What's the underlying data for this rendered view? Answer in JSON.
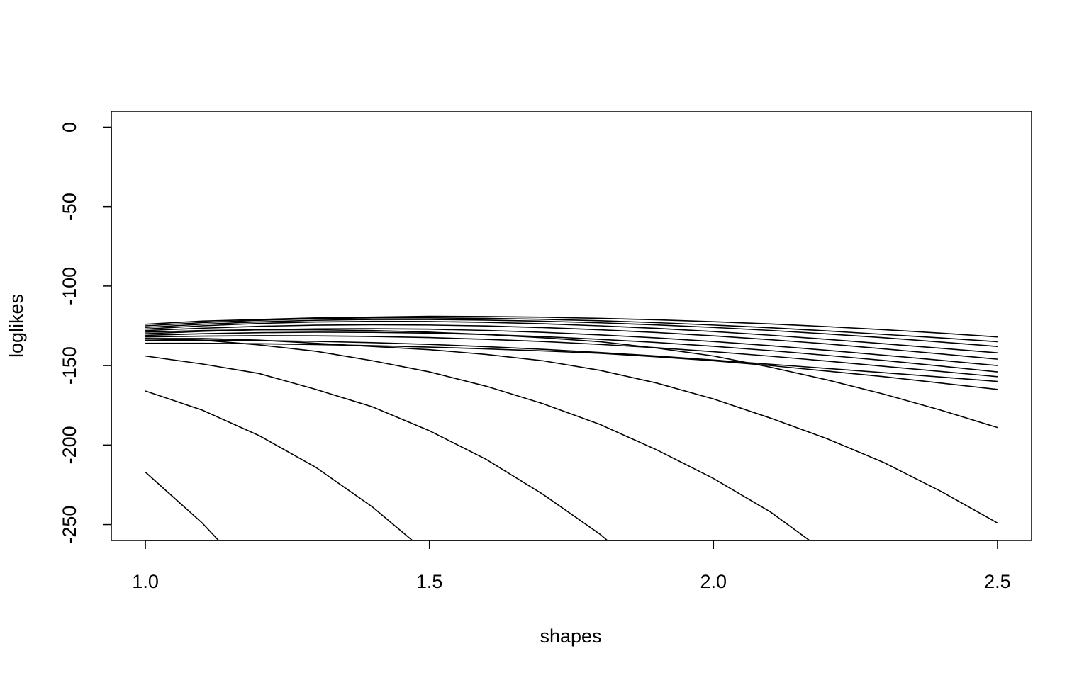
{
  "chart_data": {
    "type": "line",
    "x_label": "shapes",
    "y_label": "loglikes",
    "color": "#000000",
    "x": [
      1.0,
      1.1,
      1.2,
      1.3,
      1.4,
      1.5,
      1.6,
      1.7,
      1.8,
      1.9,
      2.0,
      2.1,
      2.2,
      2.3,
      2.4,
      2.5
    ],
    "xlim": [
      0.94,
      2.56
    ],
    "ylim": [
      -260,
      10
    ],
    "xticks": [
      {
        "value": 1.0,
        "label": "1.0"
      },
      {
        "value": 1.5,
        "label": "1.5"
      },
      {
        "value": 2.0,
        "label": "2.0"
      },
      {
        "value": 2.5,
        "label": "2.5"
      }
    ],
    "yticks": [
      -250,
      -200,
      -150,
      -100,
      -50,
      0
    ],
    "series": [
      {
        "values": [
          -124,
          -122,
          -121,
          -120,
          -119.5,
          -119,
          -119.2,
          -119.6,
          -120.3,
          -121.2,
          -122.4,
          -123.8,
          -125.5,
          -127.4,
          -129.6,
          -132
        ]
      },
      {
        "values": [
          -125,
          -123,
          -121.5,
          -120.5,
          -120,
          -120,
          -120.3,
          -120.9,
          -121.8,
          -123,
          -124.5,
          -126.2,
          -128.2,
          -130.4,
          -132.6,
          -135
        ]
      },
      {
        "values": [
          -126,
          -124,
          -122.5,
          -121.5,
          -121,
          -121,
          -121.4,
          -122.1,
          -123.1,
          -124.4,
          -126,
          -127.9,
          -130.1,
          -132.5,
          -135.2,
          -138
        ]
      },
      {
        "values": [
          -127,
          -125,
          -123.5,
          -122.6,
          -122.2,
          -122.3,
          -122.8,
          -123.7,
          -125,
          -126.6,
          -128.6,
          -130.9,
          -133.5,
          -136.3,
          -139.1,
          -142
        ]
      },
      {
        "values": [
          -128,
          -126.5,
          -125.3,
          -124.6,
          -124.3,
          -124.5,
          -125.1,
          -126.1,
          -127.5,
          -129.2,
          -131.3,
          -133.7,
          -136.4,
          -139.5,
          -142.7,
          -146
        ]
      },
      {
        "values": [
          -130,
          -128.5,
          -127.5,
          -126.9,
          -126.8,
          -127.1,
          -127.9,
          -129.1,
          -130.7,
          -132.6,
          -134.9,
          -137.5,
          -140.4,
          -143.5,
          -146.7,
          -150
        ]
      },
      {
        "values": [
          -131,
          -130,
          -129.3,
          -129,
          -129.1,
          -129.6,
          -130.5,
          -131.8,
          -133.5,
          -135.5,
          -137.9,
          -140.6,
          -143.6,
          -146.8,
          -150.3,
          -154
        ]
      },
      {
        "values": [
          -132,
          -131.5,
          -131.2,
          -131.3,
          -131.7,
          -132.4,
          -133.5,
          -134.9,
          -136.7,
          -138.8,
          -141.3,
          -144.1,
          -147.2,
          -150.5,
          -153.7,
          -157
        ]
      },
      {
        "values": [
          -134,
          -134,
          -134.3,
          -134.8,
          -135.6,
          -136.7,
          -138.1,
          -139.8,
          -141.8,
          -144,
          -146.5,
          -149.2,
          -151.8,
          -154.5,
          -157.2,
          -160
        ]
      },
      {
        "values": [
          -136,
          -136,
          -136.3,
          -136.8,
          -137.5,
          -138.4,
          -139.5,
          -140.8,
          -142.3,
          -144.5,
          -147,
          -150,
          -153.5,
          -157,
          -161,
          -165
        ]
      },
      {
        "values": [
          -129,
          -128,
          -127.5,
          -127.5,
          -128,
          -129,
          -130.5,
          -132.5,
          -135,
          -139,
          -144,
          -151,
          -159,
          -168,
          -178,
          -189
        ]
      },
      {
        "values": [
          -133,
          -133,
          -134,
          -136,
          -138,
          -140,
          -143,
          -147,
          -153,
          -161,
          -171,
          -183,
          -196,
          -211,
          -229,
          -249
        ]
      },
      {
        "values": [
          -133,
          -134,
          -137,
          -141,
          -147,
          -154,
          -163,
          -174,
          -187,
          -203,
          -221,
          -242,
          -268,
          null,
          null,
          null
        ]
      },
      {
        "values": [
          -144,
          -149,
          -155,
          -165,
          -176,
          -191,
          -209,
          -231,
          -256,
          -286,
          null,
          null,
          null,
          null,
          null,
          null
        ]
      },
      {
        "values": [
          -166,
          -178,
          -194,
          -214,
          -239,
          -269,
          null,
          null,
          null,
          null,
          null,
          null,
          null,
          null,
          null,
          null
        ]
      },
      {
        "values": [
          -217,
          -249,
          -287,
          null,
          null,
          null,
          null,
          null,
          null,
          null,
          null,
          null,
          null,
          null,
          null,
          null
        ]
      }
    ]
  }
}
